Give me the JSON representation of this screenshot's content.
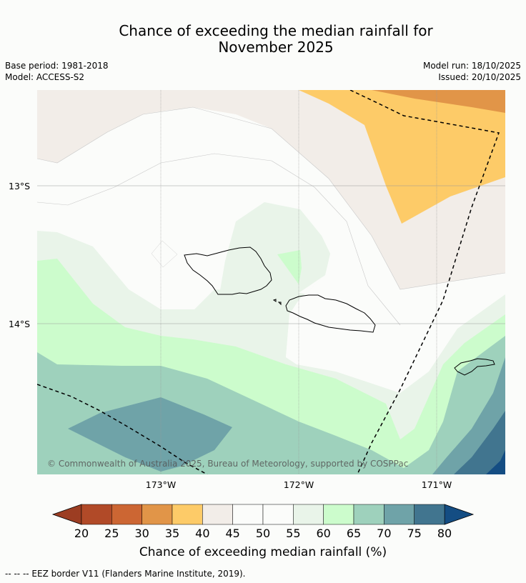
{
  "title_line1": "Chance of exceeding the median rainfall for",
  "title_line2": "November 2025",
  "base_period": "Base period: 1981-2018",
  "model": "Model: ACCESS-S2",
  "model_run": "Model run: 18/10/2025",
  "issued": "Issued: 20/10/2025",
  "map": {
    "lat_labels": [
      "13°S",
      "14°S"
    ],
    "lon_labels": [
      "173°W",
      "172°W",
      "171°W"
    ],
    "copyright": "© Commonwealth of Australia 2025, Bureau of Meteorology, supported by COSPPac"
  },
  "colorbar": {
    "ticks": [
      "20",
      "25",
      "30",
      "35",
      "40",
      "45",
      "50",
      "55",
      "60",
      "65",
      "70",
      "75",
      "80"
    ],
    "colors": [
      "#b14a28",
      "#cc6633",
      "#e19548",
      "#fdcb68",
      "#f2ede8",
      "#fbfcfa",
      "#fbfcfa",
      "#e9f4e9",
      "#ccfccc",
      "#9ed1bc",
      "#6fa3a8",
      "#41758f"
    ],
    "under_color": "#9c3d22",
    "over_color": "#144d83",
    "label": "Chance of exceeding median rainfall (%)"
  },
  "footer": "--  --  -- EEZ border V11 (Flanders Marine Institute, 2019)."
}
